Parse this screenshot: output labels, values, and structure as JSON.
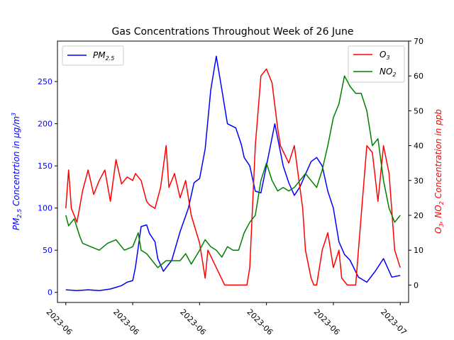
{
  "chart_data": {
    "type": "line",
    "title": "Gas Concentrations Throughout Week of 26 June",
    "xlabel": "",
    "x_tick_labels": [
      "2023-06",
      "2023-06",
      "2023-06",
      "2023-06",
      "2023-06",
      "2023-07"
    ],
    "x_tick_values": [
      "2023-06-26",
      "2023-06-27",
      "2023-06-28",
      "2023-06-29",
      "2023-06-30",
      "2023-07-01"
    ],
    "xlim": [
      "2023-06-25T21:00",
      "2023-07-01T03:00"
    ],
    "y_left": {
      "label_main": "PM",
      "label_sub": "2.5",
      "label_rest": " Concentrtion in μg/m",
      "label_sup": "3",
      "ylim": [
        -12,
        298
      ],
      "ticks": [
        0,
        50,
        100,
        150,
        200,
        250
      ],
      "color": "#0000ff"
    },
    "y_right": {
      "label_o": "O",
      "label_o_sub": "3",
      "label_mid": ",  NO",
      "label_no_sub": "2",
      "label_rest": " Concentration in ppb",
      "ylim": [
        -5,
        70
      ],
      "ticks": [
        0,
        10,
        20,
        30,
        40,
        50,
        60,
        70
      ],
      "color": "#ff0000"
    },
    "legend_left": {
      "position": "top-left",
      "label": "PM",
      "label_sub": "2.5"
    },
    "legend_right": {
      "position": "top-right",
      "items": [
        {
          "label": "O",
          "label_sub": "3",
          "color": "#ff0000"
        },
        {
          "label": "NO",
          "label_sub": "2",
          "color": "#008000"
        }
      ]
    },
    "series": [
      {
        "name": "PM2.5",
        "axis": "left",
        "color": "#0000ff",
        "x": [
          "2023-06-26T00:00",
          "2023-06-26T04:00",
          "2023-06-26T08:00",
          "2023-06-26T12:00",
          "2023-06-26T16:00",
          "2023-06-26T18:00",
          "2023-06-26T20:00",
          "2023-06-26T22:00",
          "2023-06-27T00:00",
          "2023-06-27T01:00",
          "2023-06-27T03:00",
          "2023-06-27T05:00",
          "2023-06-27T06:00",
          "2023-06-27T08:00",
          "2023-06-27T09:00",
          "2023-06-27T11:00",
          "2023-06-27T14:00",
          "2023-06-27T17:00",
          "2023-06-27T20:00",
          "2023-06-27T22:00",
          "2023-06-28T00:00",
          "2023-06-28T02:00",
          "2023-06-28T04:00",
          "2023-06-28T06:00",
          "2023-06-28T08:00",
          "2023-06-28T10:00",
          "2023-06-28T13:00",
          "2023-06-28T15:00",
          "2023-06-28T16:00",
          "2023-06-28T18:00",
          "2023-06-28T20:00",
          "2023-06-28T22:00",
          "2023-06-29T00:00",
          "2023-06-29T03:00",
          "2023-06-29T06:00",
          "2023-06-29T08:00",
          "2023-06-29T10:00",
          "2023-06-29T12:00",
          "2023-06-29T14:00",
          "2023-06-29T16:00",
          "2023-06-29T18:00",
          "2023-06-29T20:00",
          "2023-06-29T22:00",
          "2023-06-30T00:00",
          "2023-06-30T02:00",
          "2023-06-30T04:00",
          "2023-06-30T06:00",
          "2023-06-30T09:00",
          "2023-06-30T12:00",
          "2023-06-30T15:00",
          "2023-06-30T18:00",
          "2023-06-30T21:00",
          "2023-07-01T00:00"
        ],
        "y": [
          3,
          2,
          3,
          2,
          4,
          6,
          8,
          12,
          14,
          30,
          78,
          80,
          70,
          60,
          40,
          25,
          38,
          72,
          100,
          130,
          135,
          170,
          240,
          280,
          240,
          200,
          195,
          175,
          160,
          150,
          120,
          118,
          150,
          200,
          150,
          130,
          115,
          125,
          140,
          155,
          160,
          150,
          120,
          100,
          60,
          45,
          38,
          18,
          12,
          25,
          40,
          18,
          20
        ]
      },
      {
        "name": "O3",
        "axis": "right",
        "color": "#ff0000",
        "x": [
          "2023-06-26T00:00",
          "2023-06-26T01:00",
          "2023-06-26T02:00",
          "2023-06-26T04:00",
          "2023-06-26T06:00",
          "2023-06-26T08:00",
          "2023-06-26T10:00",
          "2023-06-26T12:00",
          "2023-06-26T14:00",
          "2023-06-26T16:00",
          "2023-06-26T18:00",
          "2023-06-26T20:00",
          "2023-06-26T22:00",
          "2023-06-27T00:00",
          "2023-06-27T01:00",
          "2023-06-27T03:00",
          "2023-06-27T04:00",
          "2023-06-27T05:00",
          "2023-06-27T06:00",
          "2023-06-27T08:00",
          "2023-06-27T10:00",
          "2023-06-27T12:00",
          "2023-06-27T13:00",
          "2023-06-27T15:00",
          "2023-06-27T17:00",
          "2023-06-27T19:00",
          "2023-06-27T21:00",
          "2023-06-28T00:00",
          "2023-06-28T02:00",
          "2023-06-28T03:00",
          "2023-06-28T06:00",
          "2023-06-28T09:00",
          "2023-06-28T12:00",
          "2023-06-28T15:00",
          "2023-06-28T17:00",
          "2023-06-28T18:00",
          "2023-06-28T20:00",
          "2023-06-28T22:00",
          "2023-06-29T00:00",
          "2023-06-29T02:00",
          "2023-06-29T04:00",
          "2023-06-29T05:00",
          "2023-06-29T08:00",
          "2023-06-29T10:00",
          "2023-06-29T13:00",
          "2023-06-29T14:00",
          "2023-06-29T16:00",
          "2023-06-29T17:00",
          "2023-06-29T18:00",
          "2023-06-29T20:00",
          "2023-06-29T22:00",
          "2023-06-30T00:00",
          "2023-06-30T02:00",
          "2023-06-30T03:00",
          "2023-06-30T05:00",
          "2023-06-30T07:00",
          "2023-06-30T08:00",
          "2023-06-30T10:00",
          "2023-06-30T12:00",
          "2023-06-30T14:00",
          "2023-06-30T16:00",
          "2023-06-30T18:00",
          "2023-06-30T20:00",
          "2023-06-30T22:00",
          "2023-07-01T00:00"
        ],
        "y": [
          22,
          33,
          22,
          18,
          27,
          33,
          26,
          30,
          33,
          24,
          36,
          29,
          31,
          30,
          32,
          30,
          27,
          24,
          23,
          22,
          28,
          40,
          28,
          32,
          25,
          30,
          20,
          12,
          2,
          10,
          5,
          0,
          0,
          0,
          0,
          5,
          40,
          60,
          62,
          58,
          45,
          40,
          35,
          40,
          22,
          10,
          2,
          0,
          0,
          10,
          15,
          5,
          10,
          2,
          0,
          0,
          0,
          20,
          40,
          38,
          24,
          40,
          32,
          10,
          5
        ]
      },
      {
        "name": "NO2",
        "axis": "right",
        "color": "#008000",
        "x": [
          "2023-06-26T00:00",
          "2023-06-26T01:00",
          "2023-06-26T03:00",
          "2023-06-26T05:00",
          "2023-06-26T06:00",
          "2023-06-26T09:00",
          "2023-06-26T12:00",
          "2023-06-26T15:00",
          "2023-06-26T18:00",
          "2023-06-26T21:00",
          "2023-06-27T00:00",
          "2023-06-27T02:00",
          "2023-06-27T03:00",
          "2023-06-27T05:00",
          "2023-06-27T07:00",
          "2023-06-27T09:00",
          "2023-06-27T12:00",
          "2023-06-27T15:00",
          "2023-06-27T17:00",
          "2023-06-27T19:00",
          "2023-06-27T21:00",
          "2023-06-28T00:00",
          "2023-06-28T02:00",
          "2023-06-28T04:00",
          "2023-06-28T06:00",
          "2023-06-28T08:00",
          "2023-06-28T10:00",
          "2023-06-28T12:00",
          "2023-06-28T14:00",
          "2023-06-28T16:00",
          "2023-06-28T18:00",
          "2023-06-28T20:00",
          "2023-06-28T22:00",
          "2023-06-29T00:00",
          "2023-06-29T02:00",
          "2023-06-29T04:00",
          "2023-06-29T06:00",
          "2023-06-29T08:00",
          "2023-06-29T10:00",
          "2023-06-29T12:00",
          "2023-06-29T14:00",
          "2023-06-29T16:00",
          "2023-06-29T18:00",
          "2023-06-29T20:00",
          "2023-06-29T22:00",
          "2023-06-30T00:00",
          "2023-06-30T02:00",
          "2023-06-30T04:00",
          "2023-06-30T06:00",
          "2023-06-30T08:00",
          "2023-06-30T10:00",
          "2023-06-30T12:00",
          "2023-06-30T14:00",
          "2023-06-30T16:00",
          "2023-06-30T18:00",
          "2023-06-30T20:00",
          "2023-06-30T22:00",
          "2023-07-01T00:00"
        ],
        "y": [
          20,
          17,
          19,
          14,
          12,
          11,
          10,
          12,
          13,
          10,
          11,
          15,
          10,
          9,
          7,
          5,
          7,
          7,
          7,
          9,
          6,
          10,
          13,
          11,
          10,
          8,
          11,
          10,
          10,
          15,
          18,
          20,
          30,
          35,
          30,
          27,
          28,
          27,
          28,
          30,
          32,
          30,
          28,
          33,
          40,
          48,
          52,
          60,
          57,
          55,
          55,
          50,
          40,
          42,
          30,
          22,
          18,
          20
        ]
      }
    ]
  }
}
